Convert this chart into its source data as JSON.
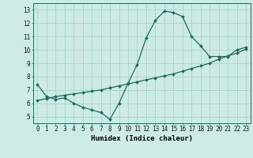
{
  "title": "",
  "xlabel": "Humidex (Indice chaleur)",
  "ylabel": "",
  "bg_color": "#ceeae4",
  "line_color": "#1a6b5e",
  "grid_color": "#a8d5cc",
  "curve1_x": [
    0,
    1,
    2,
    3,
    4,
    5,
    6,
    7,
    8,
    9,
    10,
    11,
    12,
    13,
    14,
    15,
    16,
    17,
    18,
    19,
    20,
    21,
    22,
    23
  ],
  "curve1_y": [
    7.4,
    6.5,
    6.3,
    6.4,
    6.0,
    5.7,
    5.5,
    5.3,
    4.8,
    6.0,
    7.5,
    8.9,
    10.9,
    12.2,
    12.9,
    12.8,
    12.5,
    11.0,
    10.3,
    9.5,
    9.5,
    9.5,
    10.0,
    10.2
  ],
  "curve2_x": [
    0,
    1,
    2,
    3,
    4,
    5,
    6,
    7,
    8,
    9,
    10,
    11,
    12,
    13,
    14,
    15,
    16,
    17,
    18,
    19,
    20,
    21,
    22,
    23
  ],
  "curve2_y": [
    6.2,
    6.35,
    6.5,
    6.6,
    6.7,
    6.8,
    6.9,
    7.0,
    7.15,
    7.3,
    7.45,
    7.6,
    7.75,
    7.9,
    8.05,
    8.2,
    8.4,
    8.6,
    8.8,
    9.0,
    9.3,
    9.55,
    9.75,
    10.05
  ],
  "xlim": [
    -0.5,
    23.5
  ],
  "ylim": [
    4.5,
    13.5
  ],
  "xticks": [
    0,
    1,
    2,
    3,
    4,
    5,
    6,
    7,
    8,
    9,
    10,
    11,
    12,
    13,
    14,
    15,
    16,
    17,
    18,
    19,
    20,
    21,
    22,
    23
  ],
  "yticks": [
    5,
    6,
    7,
    8,
    9,
    10,
    11,
    12,
    13
  ],
  "tick_fontsize": 5.5,
  "xlabel_fontsize": 6.5
}
